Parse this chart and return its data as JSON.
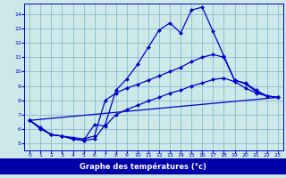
{
  "bg_color": "#cce8e8",
  "line_color": "#0000cc",
  "grid_color": "#88bbcc",
  "xlabel": "Graphe des températures (°c)",
  "xlabel_bg": "#0000aa",
  "xlabel_fg": "#ffffff",
  "xlim": [
    -0.5,
    23.5
  ],
  "ylim": [
    4.5,
    14.75
  ],
  "xticks": [
    0,
    1,
    2,
    3,
    4,
    5,
    6,
    7,
    8,
    9,
    10,
    11,
    12,
    13,
    14,
    15,
    16,
    17,
    18,
    19,
    20,
    21,
    22,
    23
  ],
  "yticks": [
    5,
    6,
    7,
    8,
    9,
    10,
    11,
    12,
    13,
    14
  ],
  "curve1_x": [
    0,
    1,
    2,
    3,
    4,
    5,
    6,
    7,
    8,
    9,
    10,
    11,
    12,
    13,
    14,
    15,
    16,
    17,
    18,
    19,
    20,
    21,
    22,
    23
  ],
  "curve1_y": [
    6.6,
    6.0,
    5.6,
    5.5,
    5.3,
    5.2,
    5.3,
    6.3,
    8.7,
    9.5,
    10.5,
    11.7,
    12.9,
    13.4,
    12.7,
    14.3,
    14.5,
    12.8,
    11.1,
    9.4,
    9.2,
    8.7,
    8.3,
    8.2
  ],
  "curve2_x": [
    0,
    1,
    2,
    3,
    4,
    5,
    6,
    7,
    8,
    9,
    10,
    11,
    12,
    13,
    14,
    15,
    16,
    17,
    18,
    19,
    20,
    21,
    22,
    23
  ],
  "curve2_y": [
    6.6,
    6.1,
    5.6,
    5.5,
    5.4,
    5.3,
    5.5,
    8.0,
    8.5,
    8.85,
    9.1,
    9.4,
    9.7,
    10.0,
    10.3,
    10.7,
    11.0,
    11.2,
    11.0,
    9.4,
    9.15,
    8.6,
    8.3,
    8.2
  ],
  "curve3_x": [
    0,
    1,
    2,
    3,
    4,
    5,
    6,
    7,
    8,
    9,
    10,
    11,
    12,
    13,
    14,
    15,
    16,
    17,
    18,
    19,
    20,
    21,
    22,
    23
  ],
  "curve3_y": [
    6.6,
    6.05,
    5.6,
    5.5,
    5.3,
    5.2,
    6.3,
    6.2,
    7.0,
    7.35,
    7.65,
    7.95,
    8.2,
    8.5,
    8.7,
    9.0,
    9.2,
    9.45,
    9.55,
    9.3,
    8.85,
    8.5,
    8.3,
    8.2
  ],
  "curve4_x": [
    0,
    23
  ],
  "curve4_y": [
    6.6,
    8.2
  ]
}
